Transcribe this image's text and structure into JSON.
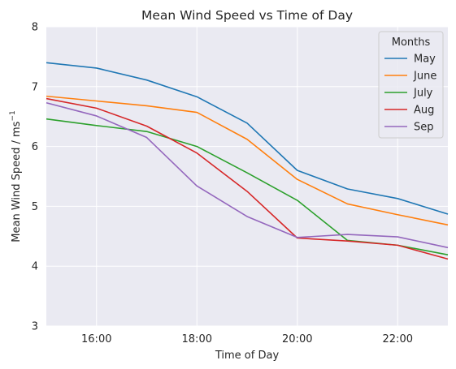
{
  "chart_data": {
    "type": "line",
    "title": "Mean Wind Speed vs Time of Day",
    "xlabel": "Time of Day",
    "ylabel_main": "Mean Wind Speed / ms",
    "ylabel_sup": "−1",
    "x": [
      15,
      16,
      17,
      18,
      19,
      20,
      21,
      22,
      23
    ],
    "xlim": [
      15,
      23
    ],
    "xticks": [
      16,
      18,
      20,
      22
    ],
    "xtick_labels": [
      "16:00",
      "18:00",
      "20:00",
      "22:00"
    ],
    "ylim": [
      3,
      8
    ],
    "yticks": [
      3,
      4,
      5,
      6,
      7,
      8
    ],
    "ytick_labels": [
      "3",
      "4",
      "5",
      "6",
      "7",
      "8"
    ],
    "grid": true,
    "legend_title": "Months",
    "legend_position": "top-right",
    "series": [
      {
        "name": "May",
        "color": "#1f77b4",
        "values": [
          7.4,
          7.31,
          7.11,
          6.83,
          6.39,
          5.6,
          5.29,
          5.13,
          4.87
        ]
      },
      {
        "name": "June",
        "color": "#ff7f0e",
        "values": [
          6.84,
          6.76,
          6.68,
          6.57,
          6.12,
          5.45,
          5.04,
          4.86,
          4.69
        ]
      },
      {
        "name": "July",
        "color": "#2ca02c",
        "values": [
          6.46,
          6.35,
          6.25,
          6.0,
          5.56,
          5.1,
          4.43,
          4.35,
          4.19
        ]
      },
      {
        "name": "Aug",
        "color": "#d62728",
        "values": [
          6.8,
          6.64,
          6.34,
          5.89,
          5.25,
          4.47,
          4.42,
          4.35,
          4.12
        ]
      },
      {
        "name": "Sep",
        "color": "#9467bd",
        "values": [
          6.73,
          6.51,
          6.15,
          5.34,
          4.83,
          4.48,
          4.53,
          4.49,
          4.31
        ]
      }
    ]
  }
}
